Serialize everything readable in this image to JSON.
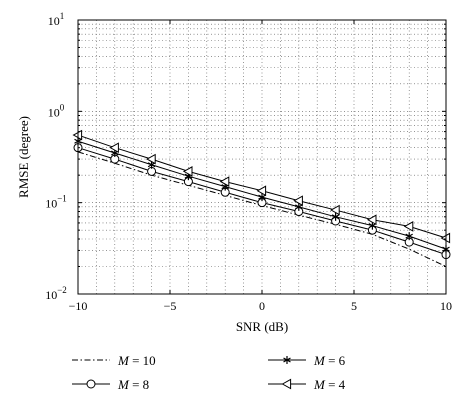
{
  "chart_data": {
    "type": "line",
    "title": "",
    "xlabel": "SNR (dB)",
    "ylabel": "RMSE (degree)",
    "xlim": [
      -10,
      10
    ],
    "ylim": [
      0.01,
      10
    ],
    "yscale": "log",
    "grid": true,
    "legend_position": "bottom",
    "x_ticks": [
      {
        "value": -10,
        "label": "−10"
      },
      {
        "value": -5,
        "label": "−5"
      },
      {
        "value": 0,
        "label": "0"
      },
      {
        "value": 5,
        "label": "5"
      },
      {
        "value": 10,
        "label": "10"
      }
    ],
    "y_ticks": [
      {
        "value": 0.01,
        "base": "10",
        "exp": "−2"
      },
      {
        "value": 0.1,
        "base": "10",
        "exp": "−1"
      },
      {
        "value": 1,
        "base": "10",
        "exp": "0"
      },
      {
        "value": 10,
        "base": "10",
        "exp": "1"
      }
    ],
    "x": [
      -10,
      -8,
      -6,
      -4,
      -2,
      0,
      2,
      4,
      6,
      8,
      10
    ],
    "series": [
      {
        "name_var": "M",
        "name_val": " = 10",
        "marker": "none",
        "dash": "dashdot",
        "values": [
          0.36,
          0.27,
          0.2,
          0.155,
          0.12,
          0.093,
          0.073,
          0.058,
          0.045,
          0.031,
          0.02
        ]
      },
      {
        "name_var": "M",
        "name_val": " = 8",
        "marker": "circle",
        "dash": "solid",
        "values": [
          0.4,
          0.3,
          0.22,
          0.17,
          0.13,
          0.1,
          0.08,
          0.063,
          0.05,
          0.037,
          0.027
        ]
      },
      {
        "name_var": "M",
        "name_val": " = 6",
        "marker": "star",
        "dash": "solid",
        "values": [
          0.47,
          0.35,
          0.26,
          0.195,
          0.15,
          0.115,
          0.09,
          0.07,
          0.056,
          0.043,
          0.031
        ]
      },
      {
        "name_var": "M",
        "name_val": " = 4",
        "marker": "triangle-left",
        "dash": "solid",
        "values": [
          0.55,
          0.4,
          0.3,
          0.22,
          0.17,
          0.135,
          0.105,
          0.083,
          0.065,
          0.055,
          0.041
        ]
      }
    ]
  }
}
